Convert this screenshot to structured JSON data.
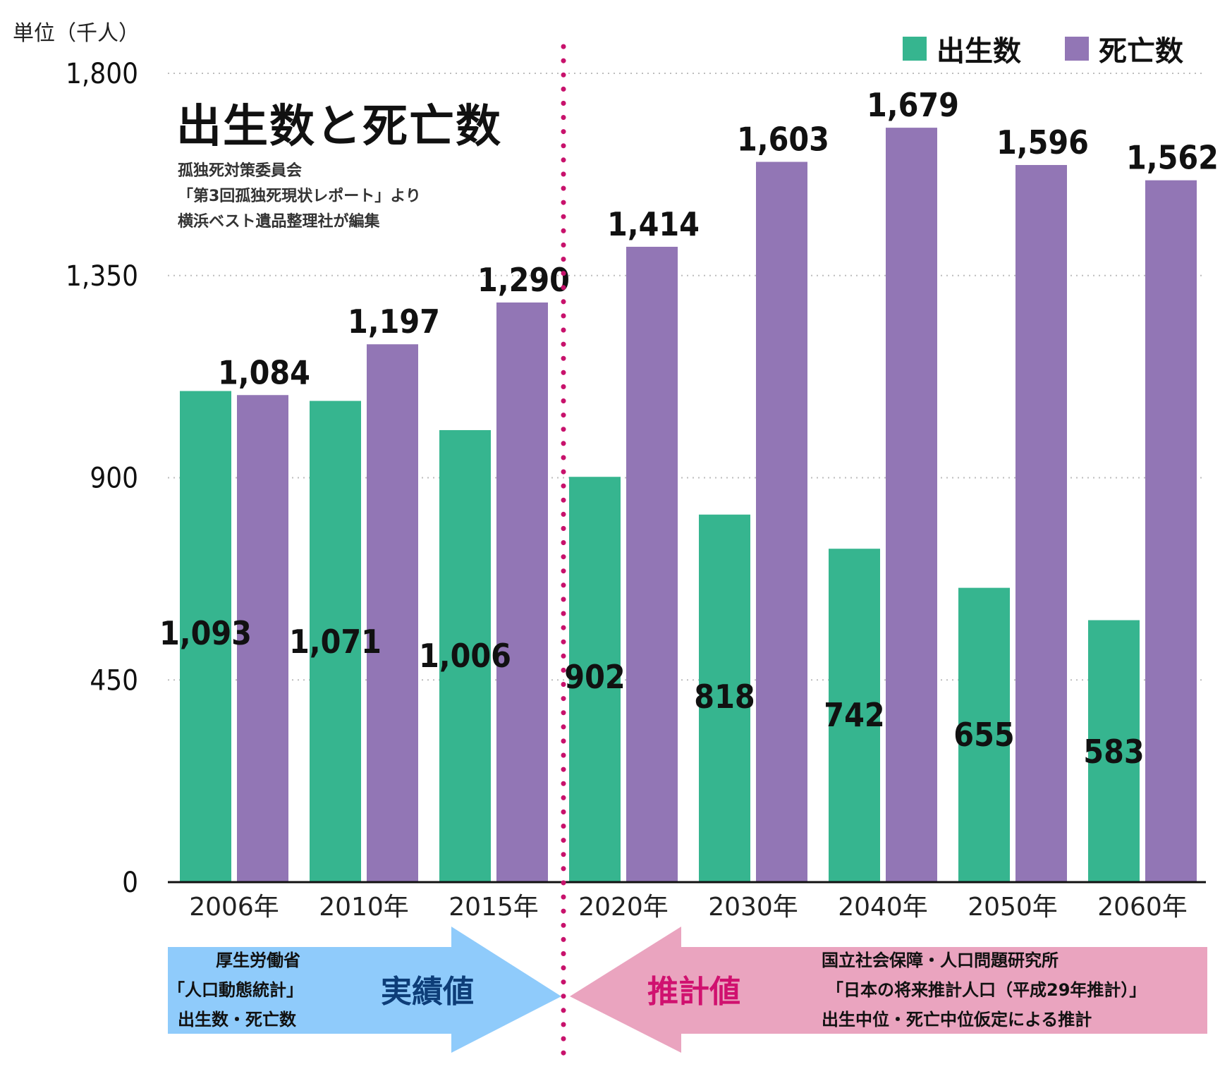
{
  "unit_label": "単位（千人）",
  "title": "出生数と死亡数",
  "source_lines": [
    "孤独死対策委員会",
    "「第3回孤独死現状レポート」より",
    "横浜ベスト遺品整理社が編集"
  ],
  "legend": [
    {
      "label": "出生数",
      "color": "#36b58f"
    },
    {
      "label": "死亡数",
      "color": "#9276b5"
    }
  ],
  "annotations": {
    "actual": {
      "label": "実績値",
      "label_color": "#0d3d78",
      "arrow_color": "#8fcbfb",
      "source_lines": [
        "厚生労働省",
        "「人口動態統計」",
        "出生数・死亡数"
      ]
    },
    "projection": {
      "label": "推計値",
      "label_color": "#d0116f",
      "arrow_color": "#eaa4bf",
      "source_lines": [
        "国立社会保障・人口問題研究所",
        "「日本の将来推計人口（平成29年推計）」",
        "出生中位・死亡中位仮定による推計"
      ]
    },
    "divider_color": "#c8126c"
  },
  "chart_data": {
    "type": "bar",
    "categories": [
      "2006年",
      "2010年",
      "2015年",
      "2020年",
      "2030年",
      "2040年",
      "2050年",
      "2060年"
    ],
    "series": [
      {
        "name": "出生数",
        "color": "#36b58f",
        "values": [
          1093,
          1071,
          1006,
          902,
          818,
          742,
          655,
          583
        ]
      },
      {
        "name": "死亡数",
        "color": "#9276b5",
        "values": [
          1084,
          1197,
          1290,
          1414,
          1603,
          1679,
          1596,
          1562
        ]
      }
    ],
    "value_labels": {
      "出生数": [
        "1,093",
        "1,071",
        "1,006",
        "902",
        "818",
        "742",
        "655",
        "583"
      ],
      "死亡数": [
        "1,084",
        "1,197",
        "1,290",
        "1,414",
        "1,603",
        "1,679",
        "1,596",
        "1,562"
      ]
    },
    "yticks": [
      "0",
      "450",
      "900",
      "1,350",
      "1,800"
    ],
    "ytick_values": [
      0,
      450,
      900,
      1350,
      1800
    ],
    "ylim": [
      0,
      1800
    ],
    "grid": true,
    "legend_position": "top-right"
  }
}
